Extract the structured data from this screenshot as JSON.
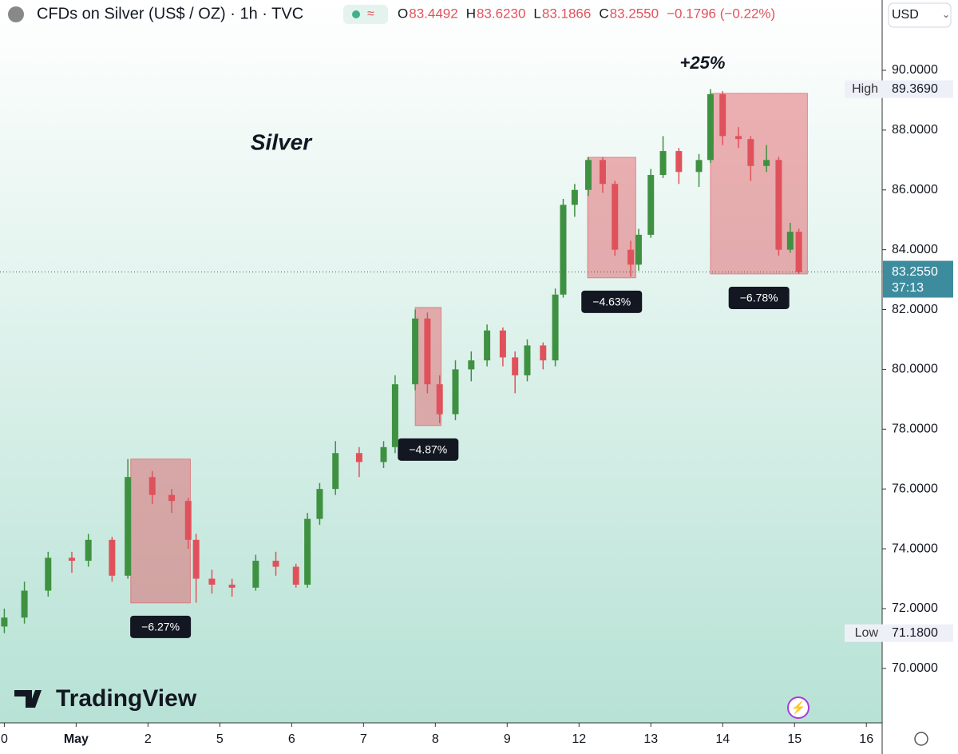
{
  "chart_data": {
    "type": "candlestick",
    "title": "CFDs on Silver (US$ / OZ) · 1h · TVC",
    "ohlc_header": [
      {
        "key": "O",
        "value": "83.4492"
      },
      {
        "key": "H",
        "value": "83.6230"
      },
      {
        "key": "L",
        "value": "83.1866"
      },
      {
        "key": "C",
        "value": "83.2550"
      }
    ],
    "change": "−0.1796 (−0.22%)",
    "currency": "USD",
    "brand": "TradingView",
    "annotation_title": "Silver",
    "annotation_gain": "+25%",
    "up_color": "#3f9142",
    "down_color": "#e0525b",
    "series": [
      {
        "name": "Silver",
        "x": [
          0.0,
          0.28,
          0.61,
          0.94,
          1.17,
          1.5,
          1.72,
          2.06,
          2.33,
          2.56,
          2.67,
          2.89,
          3.17,
          3.5,
          3.78,
          4.06,
          4.22,
          4.39,
          4.61,
          4.94,
          5.28,
          5.44,
          5.72,
          5.89,
          6.06,
          6.28,
          6.5,
          6.72,
          6.94,
          7.11,
          7.28,
          7.5,
          7.67,
          7.78,
          7.94,
          8.13,
          8.33,
          8.5,
          8.72,
          8.83,
          9.0,
          9.17,
          9.39,
          9.67,
          9.83,
          10.0,
          10.22,
          10.39,
          10.61,
          10.78,
          10.94,
          11.06
        ],
        "open": [
          71.4,
          71.7,
          72.6,
          73.7,
          73.6,
          74.3,
          73.1,
          76.4,
          75.8,
          75.6,
          74.3,
          73.0,
          72.8,
          72.7,
          73.6,
          73.4,
          72.8,
          75.0,
          76.0,
          77.2,
          76.9,
          77.4,
          79.5,
          81.7,
          79.5,
          78.5,
          80.0,
          80.3,
          81.3,
          80.4,
          79.8,
          80.8,
          80.3,
          82.5,
          85.5,
          86.0,
          87.0,
          86.2,
          84.0,
          83.5,
          84.5,
          86.5,
          87.3,
          86.6,
          87.0,
          89.2,
          87.8,
          87.7,
          86.8,
          87.0,
          84.0,
          84.6
        ],
        "high": [
          72.0,
          72.9,
          73.9,
          73.9,
          74.5,
          74.4,
          77.0,
          76.6,
          76.0,
          75.7,
          74.5,
          73.3,
          73.0,
          73.8,
          73.9,
          73.5,
          75.2,
          76.2,
          77.6,
          77.4,
          77.6,
          79.8,
          82.0,
          81.9,
          79.8,
          80.3,
          80.6,
          81.5,
          81.4,
          80.6,
          81.0,
          80.9,
          82.7,
          85.7,
          86.2,
          87.1,
          87.1,
          86.3,
          84.3,
          84.7,
          86.7,
          87.8,
          87.4,
          87.2,
          89.369,
          89.3,
          88.1,
          87.8,
          87.5,
          87.1,
          84.9,
          84.7
        ],
        "low": [
          71.18,
          71.5,
          72.4,
          73.2,
          73.4,
          72.9,
          73.0,
          75.5,
          75.2,
          74.0,
          72.2,
          72.5,
          72.4,
          72.6,
          73.1,
          72.7,
          72.7,
          74.8,
          75.8,
          76.4,
          76.7,
          77.2,
          79.3,
          79.2,
          78.2,
          78.3,
          79.6,
          80.1,
          80.1,
          79.2,
          79.6,
          80.0,
          80.1,
          82.4,
          85.1,
          85.8,
          85.9,
          83.8,
          83.1,
          83.3,
          84.4,
          86.4,
          86.2,
          86.1,
          86.9,
          87.5,
          87.4,
          86.3,
          86.6,
          83.8,
          83.9,
          83.19
        ],
        "close": [
          71.7,
          72.6,
          73.7,
          73.6,
          74.3,
          73.1,
          76.4,
          75.8,
          75.6,
          74.3,
          73.0,
          72.8,
          72.7,
          73.6,
          73.4,
          72.8,
          75.0,
          76.0,
          77.2,
          76.9,
          77.4,
          79.5,
          81.7,
          79.5,
          78.5,
          80.0,
          80.3,
          81.3,
          80.4,
          79.8,
          80.8,
          80.3,
          82.5,
          85.5,
          86.0,
          87.0,
          86.2,
          84.0,
          83.5,
          84.5,
          86.5,
          87.3,
          86.6,
          87.0,
          89.2,
          87.8,
          87.7,
          86.8,
          87.0,
          84.0,
          84.6,
          83.255
        ]
      }
    ],
    "boxes": [
      {
        "label": "−6.27%",
        "x": [
          1.76,
          2.59
        ],
        "y": [
          72.19,
          77.0
        ]
      },
      {
        "label": "−4.87%",
        "x": [
          5.72,
          6.08
        ],
        "y": [
          78.12,
          82.07
        ]
      },
      {
        "label": "−4.63%",
        "x": [
          8.12,
          8.79
        ],
        "y": [
          83.06,
          87.09
        ]
      },
      {
        "label": "−6.78%",
        "x": [
          9.83,
          11.18
        ],
        "y": [
          83.19,
          89.23
        ]
      }
    ],
    "price_labels": [
      {
        "name": "High",
        "value": 89.369,
        "label": "89.3690"
      },
      {
        "name": "Low",
        "value": 71.18,
        "label": "71.1800"
      }
    ],
    "last_price": {
      "value": 83.255,
      "label": "83.2550",
      "countdown": "37:13"
    },
    "xlim": [
      -0.06,
      12.22
    ],
    "ylim": [
      68.18,
      92.35
    ],
    "xticks": [
      {
        "value": 0,
        "label": "0"
      },
      {
        "value": 1,
        "label": "May"
      },
      {
        "value": 2,
        "label": "2"
      },
      {
        "value": 3,
        "label": "5"
      },
      {
        "value": 4,
        "label": "6"
      },
      {
        "value": 5,
        "label": "7"
      },
      {
        "value": 6,
        "label": "8"
      },
      {
        "value": 7,
        "label": "9"
      },
      {
        "value": 8,
        "label": "12"
      },
      {
        "value": 9,
        "label": "13"
      },
      {
        "value": 10,
        "label": "14"
      },
      {
        "value": 11,
        "label": "15"
      },
      {
        "value": 12,
        "label": "16"
      }
    ],
    "yticks": [
      {
        "value": 70,
        "label": "70.0000"
      },
      {
        "value": 72,
        "label": "72.0000"
      },
      {
        "value": 74,
        "label": "74.0000"
      },
      {
        "value": 76,
        "label": "76.0000"
      },
      {
        "value": 78,
        "label": "78.0000"
      },
      {
        "value": 80,
        "label": "80.0000"
      },
      {
        "value": 82,
        "label": "82.0000"
      },
      {
        "value": 84,
        "label": "84.0000"
      },
      {
        "value": 86,
        "label": "86.0000"
      },
      {
        "value": 88,
        "label": "88.0000"
      },
      {
        "value": 90,
        "label": "90.0000"
      }
    ]
  }
}
